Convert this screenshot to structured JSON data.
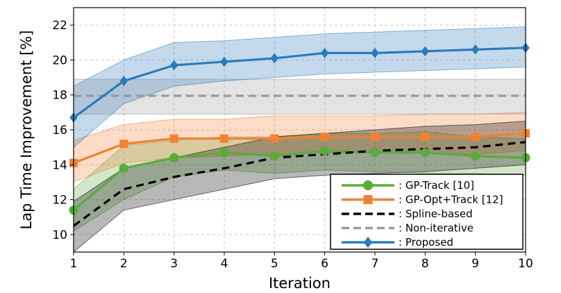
{
  "chart_data": {
    "type": "line",
    "title": "",
    "xlabel": "Iteration",
    "ylabel": "Lap Time Improvement [%]",
    "x": [
      1,
      2,
      3,
      4,
      5,
      6,
      7,
      8,
      9,
      10
    ],
    "xlim": [
      1,
      10
    ],
    "ylim": [
      9,
      23
    ],
    "xticks": [
      "1",
      "2",
      "3",
      "4",
      "5",
      "6",
      "7",
      "8",
      "9",
      "10"
    ],
    "yticks": [
      "10",
      "12",
      "14",
      "16",
      "18",
      "20",
      "22"
    ],
    "ytick_values": [
      10,
      12,
      14,
      16,
      18,
      20,
      22
    ],
    "grid": true,
    "legend_position": "bottom-right",
    "series": [
      {
        "name": ": GP-Track [10]",
        "color": "#5aaa3c",
        "marker": "circle",
        "dash": "solid",
        "values": [
          11.4,
          13.8,
          14.4,
          14.7,
          14.5,
          14.8,
          14.7,
          14.7,
          14.5,
          14.4
        ],
        "lower": [
          10.2,
          12.0,
          13.3,
          13.7,
          13.5,
          13.7,
          13.6,
          13.5,
          13.5,
          13.4
        ],
        "upper": [
          12.6,
          15.1,
          15.4,
          15.6,
          15.6,
          15.8,
          15.8,
          15.9,
          15.6,
          15.5
        ]
      },
      {
        "name": ": GP-Opt+Track [12]",
        "color": "#f08232",
        "marker": "square",
        "dash": "solid",
        "values": [
          14.1,
          15.2,
          15.5,
          15.5,
          15.5,
          15.6,
          15.6,
          15.6,
          15.6,
          15.8
        ],
        "lower": [
          13.0,
          14.1,
          14.4,
          14.5,
          14.6,
          14.7,
          14.7,
          14.7,
          14.6,
          14.8
        ],
        "upper": [
          15.4,
          16.3,
          16.6,
          16.6,
          16.8,
          16.8,
          16.8,
          16.9,
          16.9,
          17.0
        ]
      },
      {
        "name": ": Spline-based",
        "color": "#000000",
        "marker": "none",
        "dash": "dashed",
        "values": [
          10.5,
          12.6,
          13.3,
          13.8,
          14.4,
          14.6,
          14.8,
          14.9,
          15.0,
          15.3
        ],
        "lower": [
          9.0,
          11.4,
          12.0,
          12.6,
          13.2,
          13.4,
          13.5,
          13.6,
          13.8,
          14.0
        ],
        "upper": [
          11.9,
          13.8,
          14.4,
          15.0,
          15.6,
          15.8,
          16.0,
          16.2,
          16.3,
          16.5
        ]
      },
      {
        "name": ": Non-iterative",
        "color": "#9a9a9a",
        "marker": "none",
        "dash": "dashed",
        "values": [
          17.95,
          17.95,
          17.95,
          17.95,
          17.95,
          17.95,
          17.95,
          17.95,
          17.95,
          17.95
        ],
        "lower": [
          16.9,
          16.9,
          16.9,
          16.9,
          16.9,
          16.9,
          16.9,
          16.9,
          16.9,
          16.9
        ],
        "upper": [
          18.9,
          18.9,
          18.9,
          18.9,
          18.9,
          18.9,
          18.9,
          18.9,
          18.9,
          18.9
        ]
      },
      {
        "name": ": Proposed",
        "color": "#2b7bba",
        "marker": "diamond",
        "dash": "solid",
        "values": [
          16.7,
          18.8,
          19.7,
          19.9,
          20.1,
          20.4,
          20.4,
          20.5,
          20.6,
          20.7
        ],
        "lower": [
          15.0,
          17.5,
          18.5,
          18.8,
          19.0,
          19.2,
          19.3,
          19.4,
          19.5,
          19.6
        ],
        "upper": [
          18.5,
          20.0,
          21.0,
          21.1,
          21.3,
          21.5,
          21.6,
          21.7,
          21.8,
          21.9
        ]
      }
    ]
  }
}
